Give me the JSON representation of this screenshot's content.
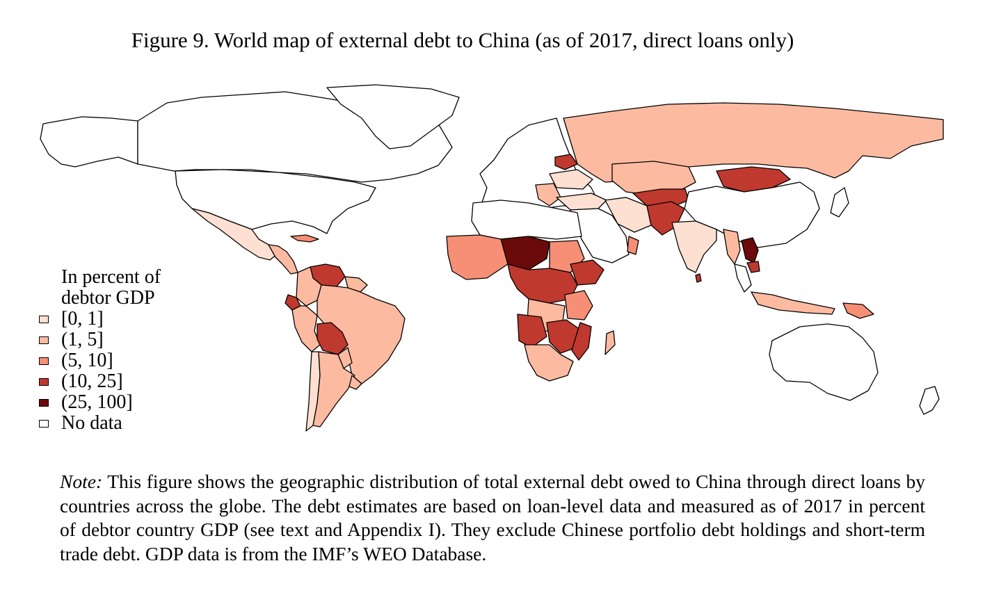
{
  "title": "Figure 9. World map of external debt to China (as of 2017, direct loans only)",
  "legend": {
    "title_line1": "In percent of",
    "title_line2": "debtor GDP",
    "items": [
      {
        "label": "[0, 1]",
        "color": "#fde0d2"
      },
      {
        "label": "(1, 5]",
        "color": "#fcbba1"
      },
      {
        "label": "(5, 10]",
        "color": "#f68f75"
      },
      {
        "label": "(10, 25]",
        "color": "#c0392e"
      },
      {
        "label": "(25, 100]",
        "color": "#6b0a0a"
      },
      {
        "label": "No data",
        "color": "#ffffff"
      }
    ]
  },
  "note": {
    "label": "Note:",
    "text": " This figure shows the geographic distribution of total external debt owed to China through direct loans by countries across the globe. The debt estimates are based on loan-level data and measured as of 2017 in percent of debtor country GDP (see text and Appendix I). They exclude Chinese portfolio debt holdings and short-term trade debt. GDP data is from the IMF’s WEO Database."
  }
}
